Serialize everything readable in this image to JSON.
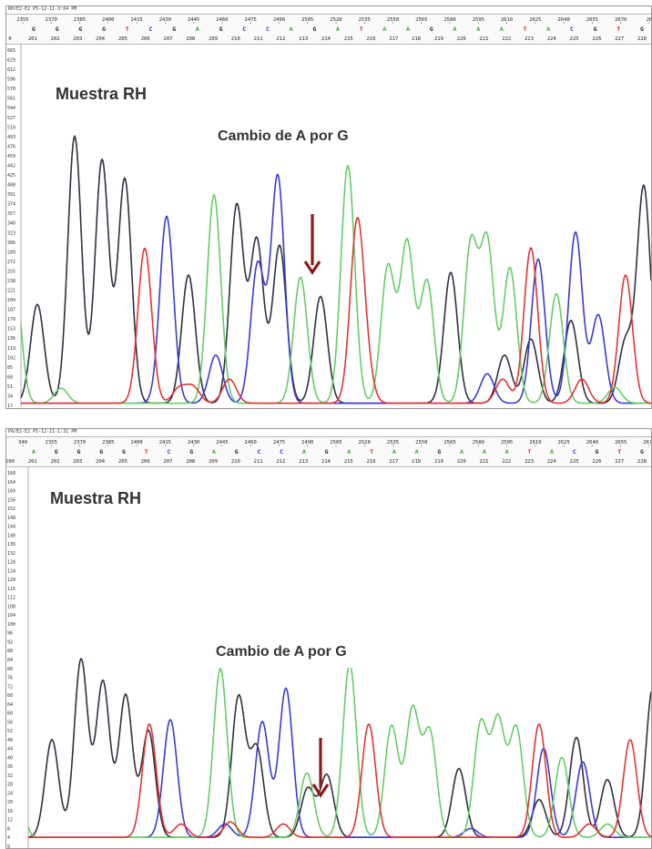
{
  "chart_data": [
    {
      "type": "line",
      "title": "Muestra RH",
      "annotation": "Cambio de A por G",
      "header": "RH/E2-E2 P5-12-11-3:04 PM",
      "scan_ticks": [
        "2355",
        "2370",
        "2385",
        "2400",
        "2415",
        "2430",
        "2445",
        "2460",
        "2475",
        "2490",
        "2505",
        "2520",
        "2535",
        "2550",
        "2565",
        "2580",
        "2595",
        "2610",
        "2625",
        "2640",
        "2655",
        "2670",
        "26"
      ],
      "bases": [
        "G",
        "G",
        "G",
        "G",
        "T",
        "C",
        "G",
        "A",
        "G",
        "C",
        "C",
        "A",
        "G",
        "A",
        "T",
        "A",
        "A",
        "G",
        "A",
        "A",
        "A",
        "T",
        "A",
        "C",
        "G",
        "T",
        "G"
      ],
      "positions": [
        "0",
        "201",
        "202",
        "203",
        "204",
        "205",
        "206",
        "207",
        "208",
        "209",
        "210",
        "211",
        "212",
        "213",
        "214",
        "215",
        "216",
        "217",
        "218",
        "219",
        "220",
        "221",
        "222",
        "223",
        "224",
        "225",
        "226",
        "227",
        "228"
      ],
      "y_ticks": [
        "665",
        "629",
        "612",
        "596",
        "578",
        "561",
        "544",
        "527",
        "510",
        "493",
        "476",
        "459",
        "442",
        "425",
        "408",
        "391",
        "374",
        "357",
        "340",
        "323",
        "306",
        "289",
        "272",
        "255",
        "238",
        "221",
        "204",
        "187",
        "170",
        "153",
        "136",
        "119",
        "102",
        "85",
        "68",
        "51",
        "34",
        "17"
      ],
      "ylim": [
        0,
        665
      ],
      "series": [
        {
          "name": "G",
          "color": "#303040",
          "peaks": [
            [
              34,
              185
            ],
            [
              75,
              500
            ],
            [
              105,
              455
            ],
            [
              130,
              420
            ],
            [
              200,
              240
            ],
            [
              253,
              370
            ],
            [
              275,
              305
            ],
            [
              300,
              295
            ],
            [
              345,
              200
            ],
            [
              488,
              245
            ],
            [
              547,
              90
            ],
            [
              576,
              120
            ],
            [
              620,
              155
            ],
            [
              680,
              115
            ],
            [
              700,
              405
            ]
          ]
        },
        {
          "name": "C",
          "color": "#3b3bd0",
          "peaks": [
            [
              176,
              350
            ],
            [
              230,
              90
            ],
            [
              276,
              260
            ],
            [
              298,
              425
            ],
            [
              528,
              55
            ],
            [
              584,
              270
            ],
            [
              625,
              320
            ],
            [
              650,
              165
            ]
          ]
        },
        {
          "name": "A",
          "color": "#66cc66",
          "peaks": [
            [
              8,
              260
            ],
            [
              60,
              28
            ],
            [
              228,
              390
            ],
            [
              323,
              236
            ],
            [
              375,
              445
            ],
            [
              419,
              255
            ],
            [
              440,
              300
            ],
            [
              462,
              228
            ],
            [
              510,
              295
            ],
            [
              528,
              300
            ],
            [
              553,
              253
            ],
            [
              604,
              205
            ],
            [
              668,
              30
            ]
          ]
        },
        {
          "name": "T",
          "color": "#e03535",
          "peaks": [
            [
              152,
              290
            ],
            [
              190,
              28
            ],
            [
              205,
              30
            ],
            [
              245,
              45
            ],
            [
              385,
              325
            ],
            [
              395,
              52
            ],
            [
              545,
              45
            ],
            [
              576,
              291
            ],
            [
              632,
              45
            ],
            [
              680,
              240
            ]
          ]
        }
      ]
    },
    {
      "type": "line",
      "title": "Muestra RH",
      "annotation": "Cambio de A por G",
      "header": "PA/E2-E2 P5-12-11-1:31 PM",
      "scan_ticks": [
        "340",
        "2355",
        "2370",
        "2385",
        "2400",
        "2415",
        "2430",
        "2445",
        "2460",
        "2475",
        "2490",
        "2505",
        "2520",
        "2535",
        "2550",
        "2565",
        "2580",
        "2595",
        "2610",
        "2625",
        "2640",
        "2655",
        "2670"
      ],
      "bases": [
        "A",
        "G",
        "G",
        "G",
        "G",
        "T",
        "C",
        "G",
        "A",
        "G",
        "C",
        "C",
        "A",
        "G",
        "A",
        "T",
        "A",
        "A",
        "G",
        "A",
        "A",
        "A",
        "T",
        "A",
        "C",
        "G",
        "T",
        "G"
      ],
      "positions": [
        "200",
        "201",
        "202",
        "203",
        "204",
        "205",
        "206",
        "207",
        "208",
        "209",
        "210",
        "211",
        "212",
        "213",
        "214",
        "215",
        "216",
        "217",
        "218",
        "219",
        "220",
        "221",
        "222",
        "223",
        "224",
        "225",
        "226",
        "227",
        "228"
      ],
      "y_ticks": [
        "168",
        "164",
        "160",
        "156",
        "152",
        "148",
        "144",
        "140",
        "136",
        "132",
        "128",
        "124",
        "120",
        "116",
        "112",
        "108",
        "104",
        "100",
        "96",
        "92",
        "88",
        "84",
        "80",
        "76",
        "72",
        "68",
        "64",
        "60",
        "56",
        "52",
        "48",
        "44",
        "40",
        "36",
        "32",
        "28",
        "24",
        "20",
        "16",
        "12",
        "8",
        "4",
        "0"
      ],
      "ylim": [
        0,
        168
      ],
      "series": [
        {
          "name": "G",
          "color": "#303040",
          "peaks": [
            [
              50,
              44
            ],
            [
              82,
              80
            ],
            [
              106,
              70
            ],
            [
              131,
              64
            ],
            [
              156,
              48
            ],
            [
              255,
              63
            ],
            [
              275,
              40
            ],
            [
              331,
              22
            ],
            [
              352,
              28
            ],
            [
              497,
              31
            ],
            [
              585,
              17
            ],
            [
              626,
              45
            ],
            [
              660,
              26
            ],
            [
              710,
              68
            ]
          ]
        },
        {
          "name": "C",
          "color": "#3b3bd0",
          "peaks": [
            [
              180,
              53
            ],
            [
              240,
              6
            ],
            [
              281,
              52
            ],
            [
              307,
              67
            ],
            [
              510,
              4
            ],
            [
              590,
              40
            ],
            [
              633,
              34
            ]
          ]
        },
        {
          "name": "A",
          "color": "#66cc66",
          "peaks": [
            [
              8,
              47
            ],
            [
              235,
              76
            ],
            [
              330,
              29
            ],
            [
              377,
              78
            ],
            [
              423,
              50
            ],
            [
              446,
              57
            ],
            [
              465,
              47
            ],
            [
              521,
              51
            ],
            [
              540,
              52
            ],
            [
              560,
              49
            ],
            [
              610,
              36
            ],
            [
              660,
              6
            ]
          ]
        },
        {
          "name": "T",
          "color": "#e03535",
          "peaks": [
            [
              157,
              51
            ],
            [
              192,
              6
            ],
            [
              246,
              7
            ],
            [
              304,
              6
            ],
            [
              398,
              51
            ],
            [
              585,
              51
            ],
            [
              640,
              6
            ],
            [
              685,
              44
            ]
          ]
        }
      ]
    }
  ]
}
